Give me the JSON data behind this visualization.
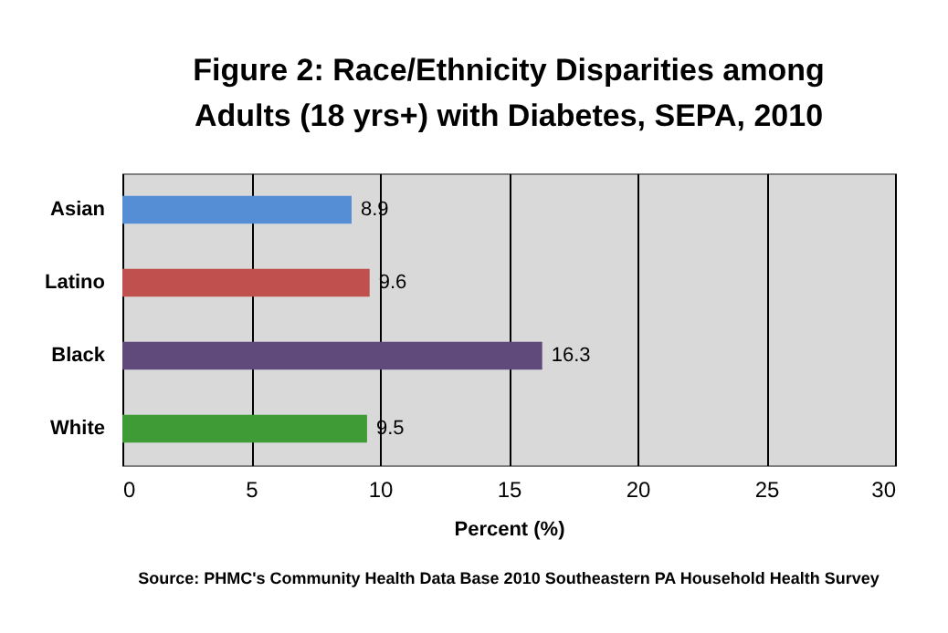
{
  "chart_data": {
    "type": "bar",
    "orientation": "horizontal",
    "title": "Figure 2: Race/Ethnicity Disparities among Adults (18 yrs+) with Diabetes, SEPA, 2010",
    "xlabel": "Percent (%)",
    "categories": [
      "Asian",
      "Latino",
      "Black",
      "White"
    ],
    "values": [
      8.9,
      9.6,
      16.3,
      9.5
    ],
    "colors": [
      "#558ed5",
      "#c0504d",
      "#604a7b",
      "#3e9b35"
    ],
    "xlim": [
      0,
      30
    ],
    "xticks": [
      0,
      5,
      10,
      15,
      20,
      25,
      30
    ],
    "grid": "x",
    "data_labels": true,
    "legend": false,
    "annotations": [
      "Source: PHMC's Community Health Data Base 2010 Southeastern PA Household Health Survey"
    ]
  }
}
